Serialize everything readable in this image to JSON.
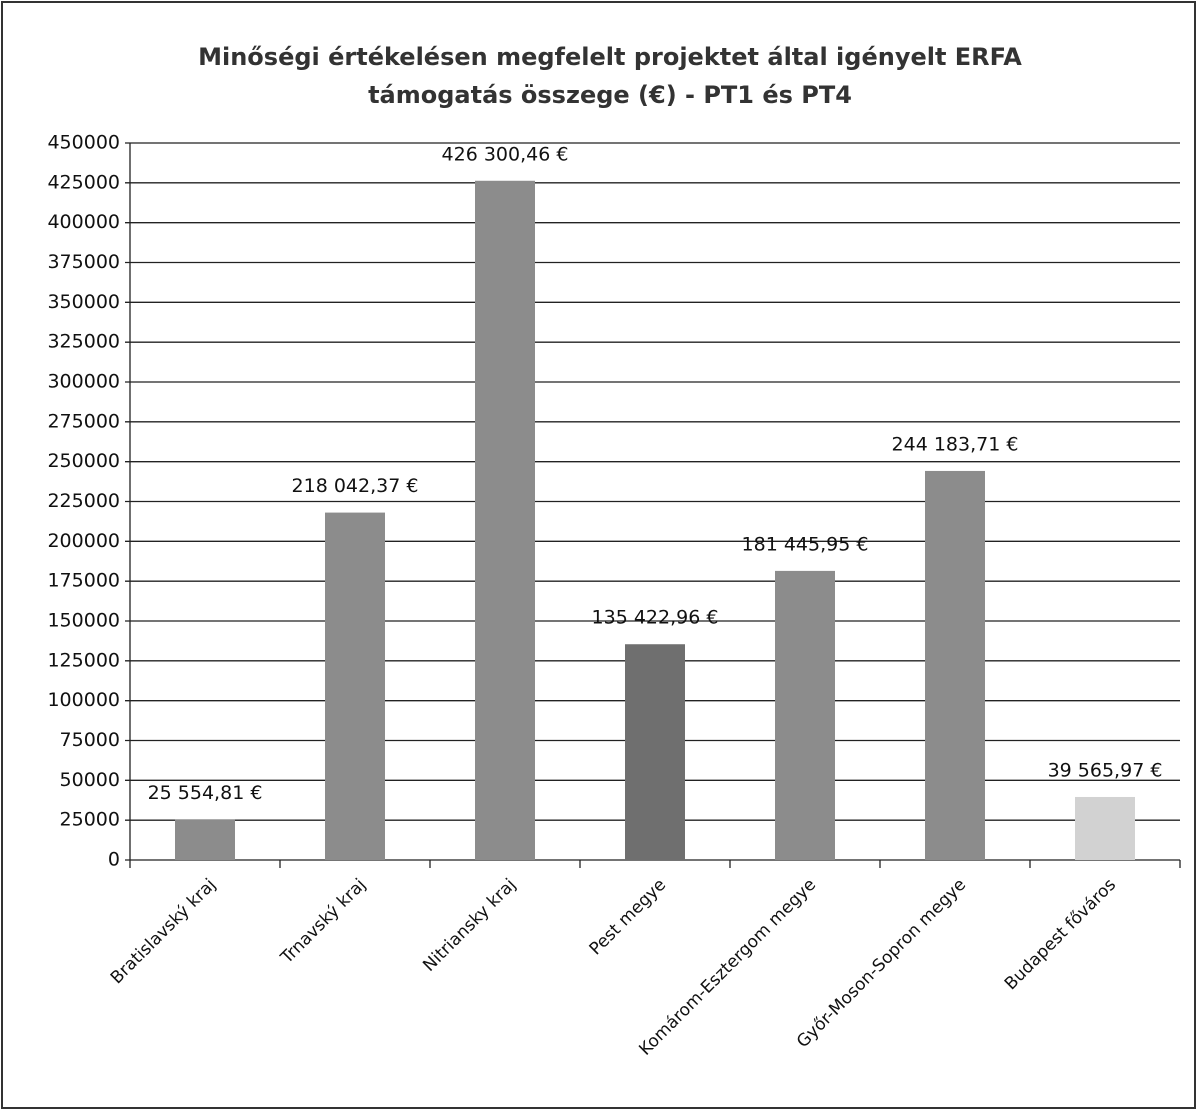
{
  "chart_data": {
    "type": "bar",
    "title": [
      "Minőségi értékelésen megfelelt projektet által igényelt ERFA",
      "támogatás összege (€) - PT1 és PT4"
    ],
    "categories": [
      "Bratislavský kraj",
      "Trnavský kraj",
      "Nitriansky kraj",
      "Pest megye",
      "Komárom-Esztergom megye",
      "Győr-Moson-Sopron megye",
      "Budapest főváros"
    ],
    "values": [
      25554.81,
      218042.37,
      426300.46,
      135422.96,
      181445.95,
      244183.71,
      39565.97
    ],
    "value_labels": [
      "25 554,81 €",
      "218 042,37 €",
      "426 300,46 €",
      "135 422,96 €",
      "181 445,95 €",
      "244 183,71 €",
      "39 565,97 €"
    ],
    "colors": [
      "#8c8c8c",
      "#8c8c8c",
      "#8c8c8c",
      "#6f6f6f",
      "#8c8c8c",
      "#8c8c8c",
      "#d2d2d2"
    ],
    "ylim": [
      0,
      450000
    ],
    "yticks": [
      0,
      25000,
      50000,
      75000,
      100000,
      125000,
      150000,
      175000,
      200000,
      225000,
      250000,
      275000,
      300000,
      325000,
      350000,
      375000,
      400000,
      425000,
      450000
    ],
    "grid": true
  }
}
